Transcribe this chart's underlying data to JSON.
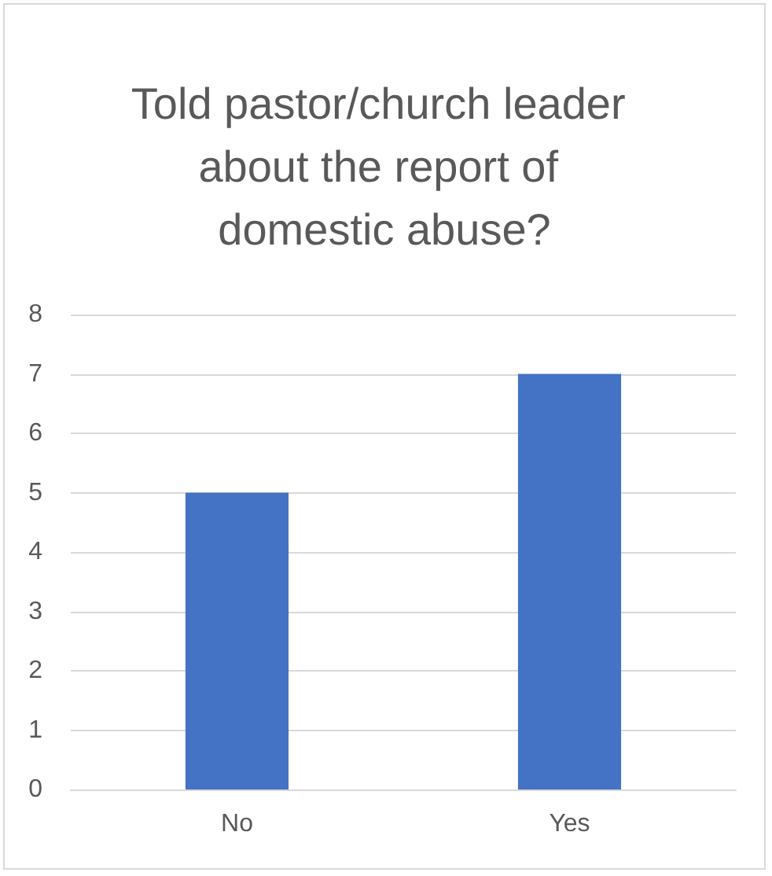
{
  "chart_data": {
    "type": "bar",
    "title": "Told pastor/church leader about the report of domestic abuse?",
    "categories": [
      "No",
      "Yes"
    ],
    "values": [
      5,
      7
    ],
    "color": "#4472c4",
    "ylim": [
      0,
      8
    ],
    "yticks": [
      0,
      1,
      2,
      3,
      4,
      5,
      6,
      7,
      8
    ],
    "grid": "y"
  }
}
